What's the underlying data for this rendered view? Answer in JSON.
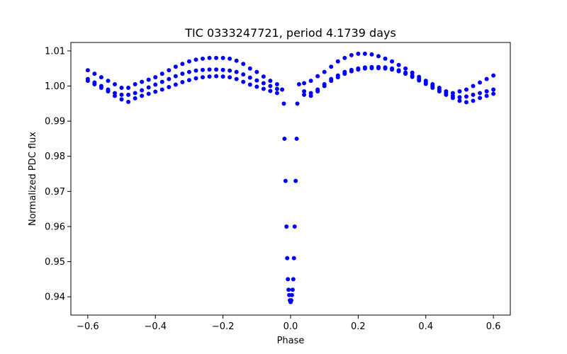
{
  "chart_data": {
    "type": "scatter",
    "title": "TIC 0333247721, period 4.1739 days",
    "xlabel": "Phase",
    "ylabel": "Normalized PDC flux",
    "xlim": [
      -0.65,
      0.65
    ],
    "ylim": [
      0.9348,
      1.0124
    ],
    "x_ticks": [
      -0.6,
      -0.4,
      -0.2,
      0.0,
      0.2,
      0.4,
      0.6
    ],
    "x_tick_labels": [
      "−0.6",
      "−0.4",
      "−0.2",
      "0.0",
      "0.2",
      "0.4",
      "0.6"
    ],
    "y_ticks": [
      0.94,
      0.95,
      0.96,
      0.97,
      0.98,
      0.99,
      1.0,
      1.01
    ],
    "y_tick_labels": [
      "0.94",
      "0.95",
      "0.96",
      "0.97",
      "0.98",
      "0.99",
      "1.00",
      "1.01"
    ],
    "grid": false,
    "legend": false,
    "marker_color": "#0000ff",
    "series": [
      {
        "x": [
          -0.6,
          -0.58,
          -0.56,
          -0.54,
          -0.52,
          -0.5,
          -0.48,
          -0.46,
          -0.44,
          -0.42,
          -0.4,
          -0.38,
          -0.36,
          -0.34,
          -0.32,
          -0.3,
          -0.28,
          -0.26,
          -0.24,
          -0.22,
          -0.2,
          -0.18,
          -0.16,
          -0.14,
          -0.12,
          -0.1,
          -0.08,
          -0.06,
          -0.04,
          -0.025,
          -0.02,
          -0.018,
          -0.015,
          -0.012,
          -0.01,
          -0.008,
          -0.006,
          -0.004,
          -0.002,
          0.0,
          0.002,
          0.004,
          0.006,
          0.008,
          0.01,
          0.012,
          0.015,
          0.018,
          0.02,
          0.025,
          0.04,
          0.06,
          0.08,
          0.1,
          0.12,
          0.14,
          0.16,
          0.18,
          0.2,
          0.22,
          0.24,
          0.26,
          0.28,
          0.3,
          0.32,
          0.34,
          0.36,
          0.38,
          0.4,
          0.42,
          0.44,
          0.46,
          0.48,
          0.5,
          0.52,
          0.54,
          0.56,
          0.58,
          0.6
        ],
        "y": [
          1.0045,
          1.0035,
          1.0025,
          1.0015,
          1.0005,
          0.9995,
          0.9995,
          1.0005,
          1.0012,
          1.0018,
          1.0025,
          1.0035,
          1.0045,
          1.0055,
          1.0063,
          1.007,
          1.0075,
          1.0078,
          1.008,
          1.008,
          1.008,
          1.0078,
          1.0072,
          1.0063,
          1.005,
          1.004,
          1.0027,
          1.0015,
          1.0005,
          0.999,
          0.995,
          0.985,
          0.973,
          0.96,
          0.951,
          0.945,
          0.942,
          0.9405,
          0.939,
          0.9385,
          0.939,
          0.9405,
          0.942,
          0.945,
          0.951,
          0.96,
          0.973,
          0.985,
          0.995,
          1.0005,
          1.0008,
          1.0015,
          1.0028,
          1.004,
          1.0055,
          1.007,
          1.008,
          1.0088,
          1.0092,
          1.0092,
          1.009,
          1.0085,
          1.0078,
          1.007,
          1.006,
          1.005,
          1.0038,
          1.0026,
          1.0015,
          1.0005,
          0.9995,
          0.9985,
          0.998,
          0.9985,
          0.999,
          1.0,
          1.001,
          1.002,
          1.003
        ]
      },
      {
        "x": [
          -0.6,
          -0.58,
          -0.56,
          -0.54,
          -0.52,
          -0.5,
          -0.48,
          -0.46,
          -0.44,
          -0.42,
          -0.4,
          -0.38,
          -0.36,
          -0.34,
          -0.32,
          -0.3,
          -0.28,
          -0.26,
          -0.24,
          -0.22,
          -0.2,
          -0.18,
          -0.16,
          -0.14,
          -0.12,
          -0.1,
          -0.08,
          -0.06,
          -0.04,
          0.04,
          0.06,
          0.08,
          0.1,
          0.12,
          0.14,
          0.16,
          0.18,
          0.2,
          0.22,
          0.24,
          0.26,
          0.28,
          0.3,
          0.32,
          0.34,
          0.36,
          0.38,
          0.4,
          0.42,
          0.44,
          0.46,
          0.48,
          0.5,
          0.52,
          0.54,
          0.56,
          0.58,
          0.6
        ],
        "y": [
          1.002,
          1.001,
          1.0,
          0.999,
          0.998,
          0.9975,
          0.9975,
          0.998,
          0.9988,
          0.9996,
          1.0004,
          1.0012,
          1.002,
          1.0028,
          1.0035,
          1.004,
          1.0044,
          1.0046,
          1.0047,
          1.0047,
          1.0046,
          1.0044,
          1.004,
          1.0033,
          1.0024,
          1.0016,
          1.0008,
          1.0,
          0.9992,
          0.9975,
          0.998,
          0.999,
          1.0005,
          1.002,
          1.003,
          1.004,
          1.0046,
          1.005,
          1.0053,
          1.0054,
          1.0054,
          1.0053,
          1.005,
          1.0045,
          1.0038,
          1.003,
          1.002,
          1.001,
          1.0,
          0.999,
          0.998,
          0.9972,
          0.9968,
          0.997,
          0.9975,
          0.998,
          0.9985,
          0.999
        ]
      },
      {
        "x": [
          -0.6,
          -0.58,
          -0.56,
          -0.54,
          -0.52,
          -0.5,
          -0.48,
          -0.46,
          -0.44,
          -0.42,
          -0.4,
          -0.38,
          -0.36,
          -0.34,
          -0.32,
          -0.3,
          -0.28,
          -0.26,
          -0.24,
          -0.22,
          -0.2,
          -0.18,
          -0.16,
          -0.14,
          -0.12,
          -0.1,
          -0.08,
          -0.06,
          -0.04,
          0.04,
          0.06,
          0.08,
          0.1,
          0.12,
          0.14,
          0.16,
          0.18,
          0.2,
          0.22,
          0.24,
          0.26,
          0.28,
          0.3,
          0.32,
          0.34,
          0.36,
          0.38,
          0.4,
          0.42,
          0.44,
          0.46,
          0.48,
          0.5,
          0.52,
          0.54,
          0.56,
          0.58,
          0.6
        ],
        "y": [
          1.0015,
          1.0005,
          0.9995,
          0.9985,
          0.9972,
          0.9962,
          0.9955,
          0.9965,
          0.9972,
          0.9978,
          0.9984,
          0.999,
          0.9997,
          1.0004,
          1.0011,
          1.0017,
          1.0022,
          1.0025,
          1.0027,
          1.0028,
          1.0027,
          1.0025,
          1.002,
          1.0012,
          1.0004,
          0.9998,
          0.9992,
          0.9986,
          0.998,
          0.9985,
          0.9972,
          0.9985,
          1.0,
          1.0015,
          1.0025,
          1.0035,
          1.0042,
          1.0047,
          1.005,
          1.0051,
          1.0051,
          1.005,
          1.0047,
          1.0042,
          1.0035,
          1.0026,
          1.0016,
          1.0006,
          0.9995,
          0.9985,
          0.9975,
          0.9966,
          0.9958,
          0.9954,
          0.9958,
          0.9966,
          0.9972,
          0.9978
        ]
      }
    ]
  }
}
